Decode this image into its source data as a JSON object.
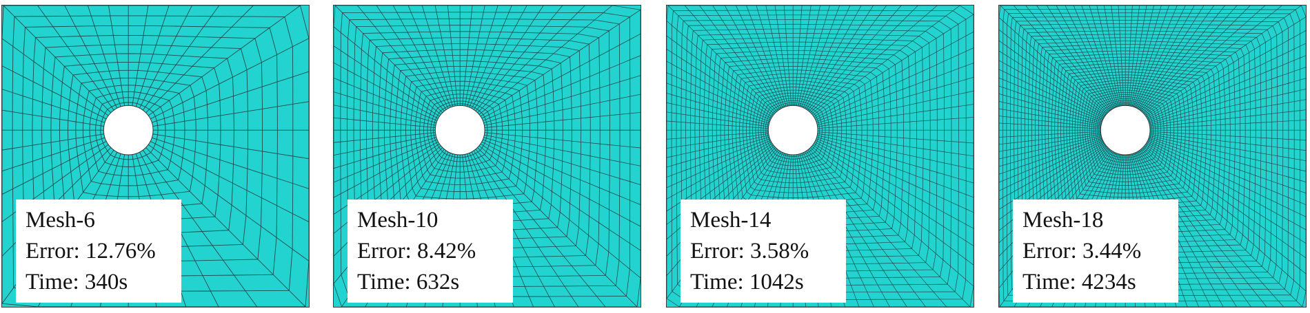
{
  "figure": {
    "panels": [
      {
        "id": "mesh-6",
        "mesh_label": "Mesh-6",
        "error_label": "Error: 12.76%",
        "time_label": "Time: 340s",
        "radial_divisions": 40,
        "ring_count": 13
      },
      {
        "id": "mesh-10",
        "mesh_label": "Mesh-10",
        "error_label": "Error: 8.42%",
        "time_label": "Time: 632s",
        "radial_divisions": 64,
        "ring_count": 20
      },
      {
        "id": "mesh-14",
        "mesh_label": "Mesh-14",
        "error_label": "Error: 3.58%",
        "time_label": "Time: 1042s",
        "radial_divisions": 88,
        "ring_count": 28
      },
      {
        "id": "mesh-18",
        "mesh_label": "Mesh-18",
        "error_label": "Error: 3.44%",
        "time_label": "Time: 4234s",
        "radial_divisions": 112,
        "ring_count": 36
      }
    ],
    "colors": {
      "plate_fill": "#22d3cf",
      "mesh_line": "#1f4a4c",
      "hole_fill": "#ffffff",
      "label_background": "#ffffff",
      "label_text": "#111111"
    }
  }
}
